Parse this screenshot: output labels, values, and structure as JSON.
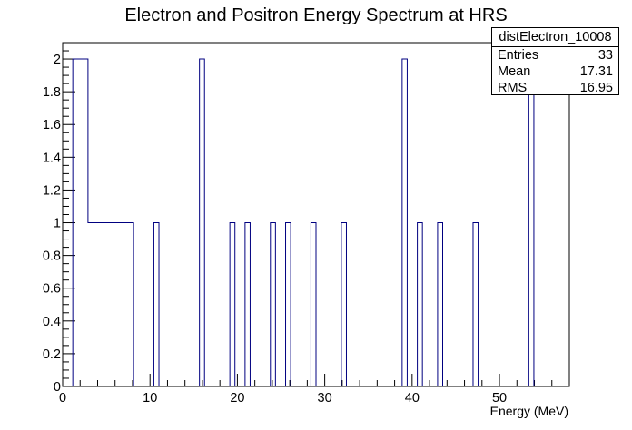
{
  "chart_data": {
    "type": "bar",
    "title": "Electron and Positron Energy Spectrum at HRS",
    "xlabel": "Energy (MeV)",
    "ylabel": "",
    "xlim": [
      0,
      58
    ],
    "ylim": [
      0,
      2.1
    ],
    "bin_width": 0.58,
    "x_ticks": [
      "0",
      "10",
      "20",
      "30",
      "40",
      "50"
    ],
    "y_ticks": [
      "0",
      "0.2",
      "0.4",
      "0.6",
      "0.8",
      "1",
      "1.2",
      "1.4",
      "1.6",
      "1.8",
      "2"
    ],
    "bins": [
      {
        "x_start": 1.16,
        "count": 2
      },
      {
        "x_start": 1.74,
        "count": 2
      },
      {
        "x_start": 2.32,
        "count": 2
      },
      {
        "x_start": 2.9,
        "count": 1
      },
      {
        "x_start": 3.48,
        "count": 1
      },
      {
        "x_start": 4.06,
        "count": 1
      },
      {
        "x_start": 4.64,
        "count": 1
      },
      {
        "x_start": 5.22,
        "count": 1
      },
      {
        "x_start": 5.8,
        "count": 1
      },
      {
        "x_start": 6.38,
        "count": 1
      },
      {
        "x_start": 6.96,
        "count": 1
      },
      {
        "x_start": 7.54,
        "count": 1
      },
      {
        "x_start": 10.44,
        "count": 1
      },
      {
        "x_start": 15.66,
        "count": 2
      },
      {
        "x_start": 19.14,
        "count": 1
      },
      {
        "x_start": 20.88,
        "count": 1
      },
      {
        "x_start": 23.78,
        "count": 1
      },
      {
        "x_start": 25.52,
        "count": 1
      },
      {
        "x_start": 28.42,
        "count": 1
      },
      {
        "x_start": 31.9,
        "count": 1
      },
      {
        "x_start": 38.86,
        "count": 2
      },
      {
        "x_start": 40.6,
        "count": 1
      },
      {
        "x_start": 42.92,
        "count": 1
      },
      {
        "x_start": 46.98,
        "count": 1
      },
      {
        "x_start": 53.36,
        "count": 2
      }
    ],
    "line_color": "#000080"
  },
  "stats": {
    "name": "distElectron_10008",
    "entries_label": "Entries",
    "entries_value": "33",
    "mean_label": "Mean",
    "mean_value": "17.31",
    "rms_label": "RMS",
    "rms_value": "16.95"
  }
}
